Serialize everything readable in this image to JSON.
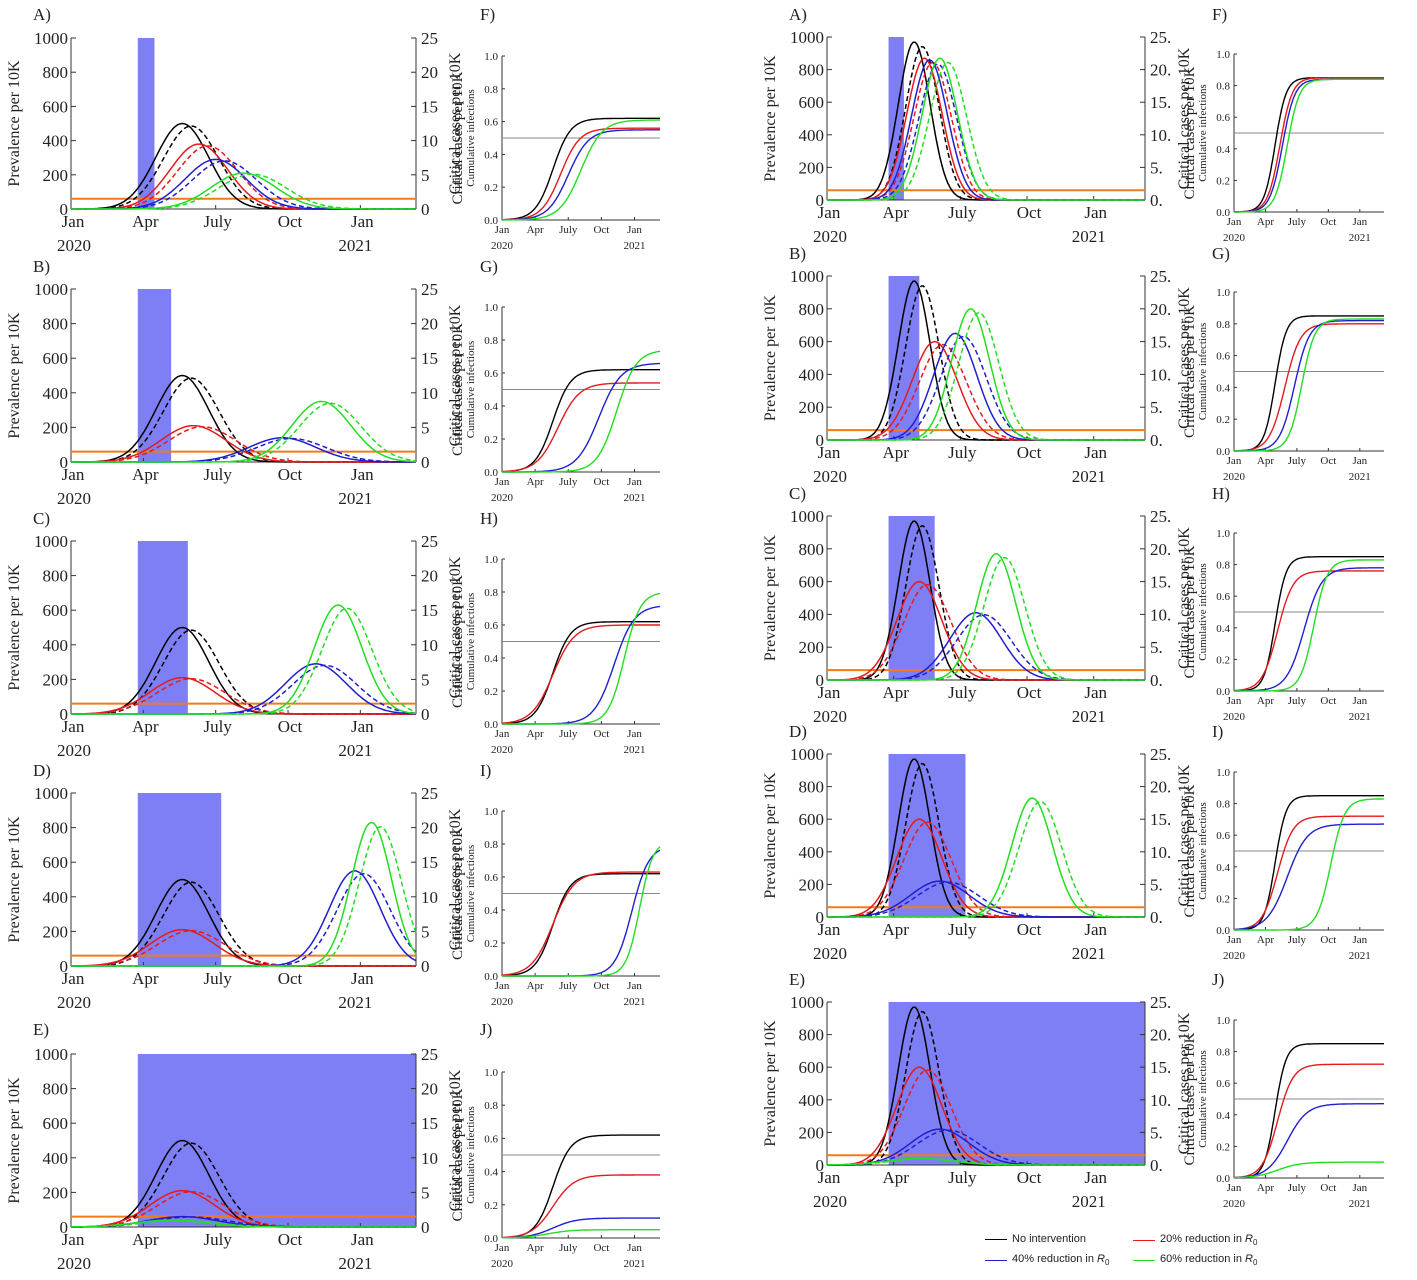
{
  "common": {
    "prevalence_label": "Prevalence per 10K",
    "critical_label": "Critical cases per 10K",
    "cumulative_title": "Cumulative infections",
    "year_labels": [
      "2020",
      "2021"
    ],
    "month_ticks": [
      "Jan",
      "Apr",
      "July",
      "Oct",
      "Jan"
    ],
    "left_y_ticks": [
      "0",
      "200",
      "400",
      "600",
      "800",
      "1000"
    ],
    "right_y_ticks_left_figure": [
      "0",
      "5",
      "10",
      "15",
      "20",
      "25"
    ],
    "right_y_ticks_right_figure": [
      "0.",
      "5.",
      "10.",
      "15.",
      "20.",
      "25."
    ],
    "inset_y_ticks": [
      "0.0",
      "0.2",
      "0.4",
      "0.6",
      "0.8",
      "1.0"
    ],
    "inset_x_ticks": [
      "Jan",
      "Apr",
      "July",
      "Oct",
      "Jan"
    ],
    "threshold_line": 0.5,
    "colors": {
      "no_intervention": "#000000",
      "reduction_20": "#e41a1c",
      "reduction_40": "#1f1fd0",
      "reduction_60": "#22dd22",
      "intervention_band": "#7f7ff5",
      "capacity_line": "#f07b1c"
    }
  },
  "legend": {
    "items": [
      {
        "key": "no_intervention",
        "label": "No intervention"
      },
      {
        "key": "reduction_20",
        "label": "20% reduction in ",
        "sym": "R",
        "sub": "0"
      },
      {
        "key": "reduction_40",
        "label": "40% reduction in ",
        "sym": "R",
        "sub": "0"
      },
      {
        "key": "reduction_60",
        "label": "60% reduction in ",
        "sym": "R",
        "sub": "0"
      }
    ]
  },
  "chart_data": [
    {
      "figure": "left",
      "type": "line",
      "x_unit": "weeks since Jan 2020",
      "x_range": [
        0,
        62
      ],
      "ylim_left": [
        0,
        1000
      ],
      "ylim_right": [
        0,
        25
      ],
      "panels": [
        {
          "letter": "A)",
          "inset_letter": "F)",
          "intervention": [
            12,
            15
          ],
          "curves": {
            "no_intervention": {
              "peak": 500,
              "peak_week": 20
            },
            "reduction_20": {
              "peak": 380,
              "peak_week": 23
            },
            "reduction_40": {
              "peak": 290,
              "peak_week": 26
            },
            "reduction_60": {
              "peak": 210,
              "peak_week": 31
            }
          },
          "cumulative_final": {
            "no_intervention": 0.62,
            "reduction_20": 0.56,
            "reduction_40": 0.55,
            "reduction_60": 0.61
          }
        },
        {
          "letter": "B)",
          "inset_letter": "G)",
          "intervention": [
            12,
            18
          ],
          "curves": {
            "no_intervention": {
              "peak": 500,
              "peak_week": 20
            },
            "reduction_20": {
              "peak": 210,
              "peak_week": 22
            },
            "reduction_40": {
              "peak": 140,
              "peak_week": 38
            },
            "reduction_60": {
              "peak": 350,
              "peak_week": 45
            }
          },
          "cumulative_final": {
            "no_intervention": 0.62,
            "reduction_20": 0.54,
            "reduction_40": 0.66,
            "reduction_60": 0.74
          }
        },
        {
          "letter": "C)",
          "inset_letter": "H)",
          "intervention": [
            12,
            21
          ],
          "curves": {
            "no_intervention": {
              "peak": 500,
              "peak_week": 20
            },
            "reduction_20": {
              "peak": 210,
              "peak_week": 20
            },
            "reduction_40": {
              "peak": 290,
              "peak_week": 44
            },
            "reduction_60": {
              "peak": 630,
              "peak_week": 48
            }
          },
          "cumulative_final": {
            "no_intervention": 0.62,
            "reduction_20": 0.6,
            "reduction_40": 0.72,
            "reduction_60": 0.8
          }
        },
        {
          "letter": "D)",
          "inset_letter": "I)",
          "intervention": [
            12,
            27
          ],
          "curves": {
            "no_intervention": {
              "peak": 500,
              "peak_week": 20
            },
            "reduction_20": {
              "peak": 210,
              "peak_week": 20
            },
            "reduction_40": {
              "peak": 550,
              "peak_week": 51
            },
            "reduction_60": {
              "peak": 830,
              "peak_week": 54
            }
          },
          "cumulative_final": {
            "no_intervention": 0.62,
            "reduction_20": 0.63,
            "reduction_40": 0.79,
            "reduction_60": 0.82
          }
        },
        {
          "letter": "E)",
          "inset_letter": "J)",
          "intervention": [
            12,
            62
          ],
          "curves": {
            "no_intervention": {
              "peak": 500,
              "peak_week": 20
            },
            "reduction_20": {
              "peak": 210,
              "peak_week": 20
            },
            "reduction_40": {
              "peak": 60,
              "peak_week": 20
            },
            "reduction_60": {
              "peak": 40,
              "peak_week": 18
            }
          },
          "cumulative_final": {
            "no_intervention": 0.62,
            "reduction_20": 0.38,
            "reduction_40": 0.12,
            "reduction_60": 0.05
          }
        }
      ]
    },
    {
      "figure": "right",
      "type": "line",
      "x_unit": "weeks since Jan 2020",
      "x_range": [
        0,
        62
      ],
      "ylim_left": [
        0,
        1000
      ],
      "ylim_right": [
        0,
        25
      ],
      "panels": [
        {
          "letter": "A)",
          "inset_letter": "F)",
          "intervention": [
            12,
            15
          ],
          "curves": {
            "no_intervention": {
              "peak": 970,
              "peak_week": 17
            },
            "reduction_20": {
              "peak": 870,
              "peak_week": 19
            },
            "reduction_40": {
              "peak": 860,
              "peak_week": 20
            },
            "reduction_60": {
              "peak": 870,
              "peak_week": 22
            }
          },
          "cumulative_final": {
            "no_intervention": 0.85,
            "reduction_20": 0.85,
            "reduction_40": 0.84,
            "reduction_60": 0.84
          }
        },
        {
          "letter": "B)",
          "inset_letter": "G)",
          "intervention": [
            12,
            18
          ],
          "curves": {
            "no_intervention": {
              "peak": 970,
              "peak_week": 17
            },
            "reduction_20": {
              "peak": 600,
              "peak_week": 21
            },
            "reduction_40": {
              "peak": 650,
              "peak_week": 25
            },
            "reduction_60": {
              "peak": 800,
              "peak_week": 28
            }
          },
          "cumulative_final": {
            "no_intervention": 0.85,
            "reduction_20": 0.8,
            "reduction_40": 0.82,
            "reduction_60": 0.83
          }
        },
        {
          "letter": "C)",
          "inset_letter": "H)",
          "intervention": [
            12,
            21
          ],
          "curves": {
            "no_intervention": {
              "peak": 970,
              "peak_week": 17
            },
            "reduction_20": {
              "peak": 600,
              "peak_week": 18
            },
            "reduction_40": {
              "peak": 410,
              "peak_week": 29
            },
            "reduction_60": {
              "peak": 770,
              "peak_week": 33
            }
          },
          "cumulative_final": {
            "no_intervention": 0.85,
            "reduction_20": 0.76,
            "reduction_40": 0.78,
            "reduction_60": 0.83
          }
        },
        {
          "letter": "D)",
          "inset_letter": "I)",
          "intervention": [
            12,
            27
          ],
          "curves": {
            "no_intervention": {
              "peak": 970,
              "peak_week": 17
            },
            "reduction_20": {
              "peak": 600,
              "peak_week": 18
            },
            "reduction_40": {
              "peak": 220,
              "peak_week": 22
            },
            "reduction_60": {
              "peak": 730,
              "peak_week": 40
            }
          },
          "cumulative_final": {
            "no_intervention": 0.85,
            "reduction_20": 0.72,
            "reduction_40": 0.67,
            "reduction_60": 0.83
          }
        },
        {
          "letter": "E)",
          "inset_letter": "J)",
          "intervention": [
            12,
            62
          ],
          "curves": {
            "no_intervention": {
              "peak": 970,
              "peak_week": 17
            },
            "reduction_20": {
              "peak": 600,
              "peak_week": 18
            },
            "reduction_40": {
              "peak": 220,
              "peak_week": 22
            },
            "reduction_60": {
              "peak": 40,
              "peak_week": 18
            }
          },
          "cumulative_final": {
            "no_intervention": 0.85,
            "reduction_20": 0.72,
            "reduction_40": 0.47,
            "reduction_60": 0.1
          }
        }
      ]
    }
  ]
}
